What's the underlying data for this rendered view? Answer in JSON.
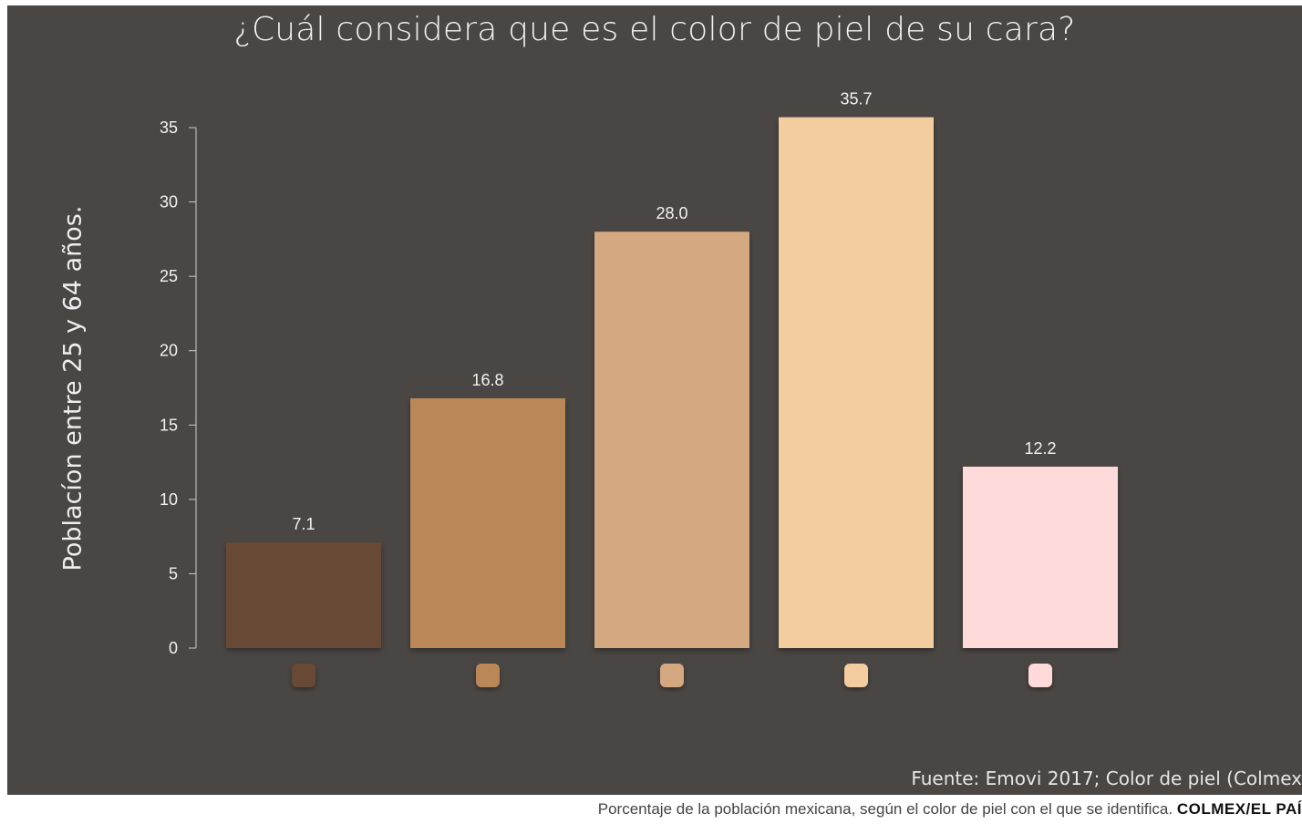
{
  "chart_data": {
    "type": "bar",
    "title": "¿Cuál considera que es el color de piel de su cara?",
    "ylabel": "Poblacíon entre 25 y 64 años.",
    "xlabel": "",
    "ylim": [
      0,
      35
    ],
    "yticks": [
      0,
      5,
      10,
      15,
      20,
      25,
      30,
      35
    ],
    "categories": [
      "",
      "",
      "",
      "",
      ""
    ],
    "values": [
      7.1,
      16.8,
      28.0,
      35.7,
      12.2
    ],
    "value_labels": [
      "7.1",
      "16.8",
      "28.0",
      "35.7",
      "12.2"
    ],
    "bar_colors": [
      "#674a35",
      "#b98759",
      "#d4a981",
      "#f3cda0",
      "#fedadb"
    ],
    "grid": false,
    "legend": "none"
  },
  "source": "Fuente: Emovi 2017; Color de piel (Colmex",
  "caption": {
    "text": "Porcentaje de la población mexicana, según el color de piel con el que se identifica. ",
    "credit": "COLMEX/EL PAÍ"
  },
  "colors": {
    "background": "#4a4643",
    "text": "#f2f2f2",
    "axis": "#cfcfcf"
  }
}
